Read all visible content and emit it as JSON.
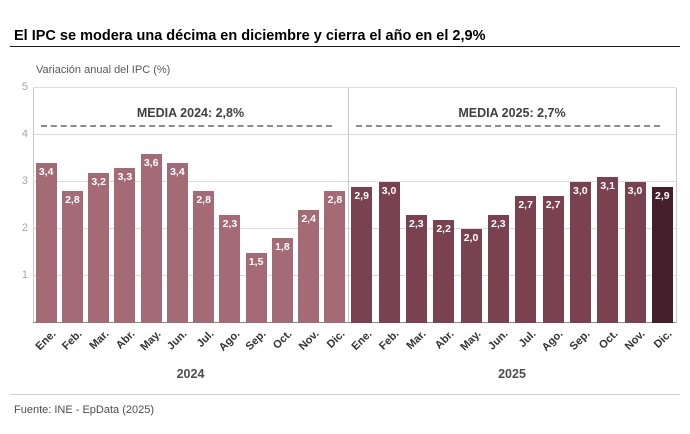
{
  "header": {
    "title": "El IPC se modera una décima en diciembre y cierra el año en el 2,9%"
  },
  "chart_data": {
    "type": "bar",
    "note": "Variación anual del IPC (%)",
    "ylim": [
      0,
      5
    ],
    "y_ticks": [
      "5",
      "4",
      "3",
      "2",
      "1"
    ],
    "grid": true,
    "media_line_y": 4.17,
    "colors": {
      "bar_2024": "#a46b76",
      "bar_2025": "#7a4250",
      "bar_highlight": "#44202c",
      "dashed_line": "#8c8c8c"
    },
    "groups": [
      {
        "year": "2024",
        "media_label": "MEDIA 2024: 2,8%",
        "bar_color": "#a46b76",
        "categories": [
          "Ene.",
          "Feb.",
          "Mar.",
          "Abr.",
          "May.",
          "Jun.",
          "Jul.",
          "Ago.",
          "Sep.",
          "Oct.",
          "Nov.",
          "Dic."
        ],
        "values": [
          3.4,
          2.8,
          3.2,
          3.3,
          3.6,
          3.4,
          2.8,
          2.3,
          1.5,
          1.8,
          2.4,
          2.8
        ],
        "value_labels": [
          "3,4",
          "2,8",
          "3,2",
          "3,3",
          "3,6",
          "3,4",
          "2,8",
          "2,3",
          "1,5",
          "1,8",
          "2,4",
          "2,8"
        ]
      },
      {
        "year": "2025",
        "media_label": "MEDIA 2025: 2,7%",
        "bar_color": "#7a4250",
        "highlight_last_color": "#44202c",
        "categories": [
          "Ene.",
          "Feb.",
          "Mar.",
          "Abr.",
          "May.",
          "Jun.",
          "Jul.",
          "Ago.",
          "Sep.",
          "Oct.",
          "Nov.",
          "Dic."
        ],
        "values": [
          2.9,
          3.0,
          2.3,
          2.2,
          2.0,
          2.3,
          2.7,
          2.7,
          3.0,
          3.1,
          3.0,
          2.9
        ],
        "value_labels": [
          "2,9",
          "3,0",
          "2,3",
          "2,2",
          "2,0",
          "2,3",
          "2,7",
          "2,7",
          "3,0",
          "3,1",
          "3,0",
          "2,9"
        ]
      }
    ]
  },
  "footer": {
    "source": "Fuente: INE - EpData (2025)"
  }
}
